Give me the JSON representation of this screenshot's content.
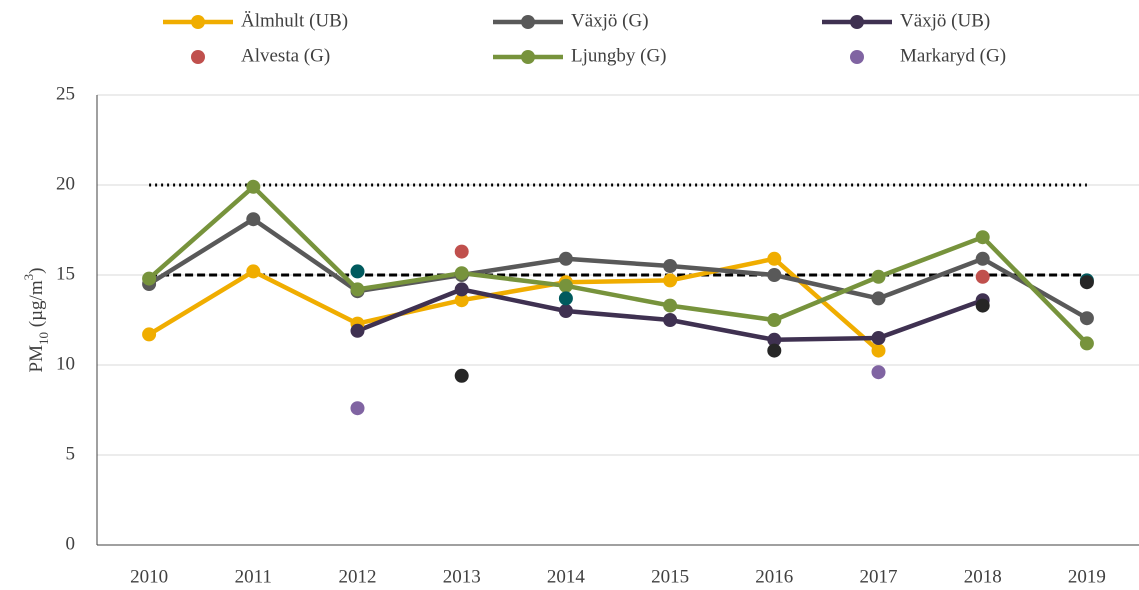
{
  "chart_data": {
    "type": "line",
    "categories": [
      "2010",
      "2011",
      "2012",
      "2013",
      "2014",
      "2015",
      "2016",
      "2017",
      "2018",
      "2019"
    ],
    "ylabel": [
      "PM",
      "10",
      " (µg/m",
      "3",
      ")"
    ],
    "ylabel_scripts": [
      null,
      "sub",
      null,
      "super",
      null
    ],
    "ylim": [
      0,
      25
    ],
    "yticks": [
      0,
      5,
      10,
      15,
      20,
      25
    ],
    "grid": true,
    "legend": "top",
    "reference_lines": [
      {
        "value": 20,
        "style": "dotted"
      },
      {
        "value": 15,
        "style": "dashed"
      }
    ],
    "series": [
      {
        "name": "Älmhult (UB)",
        "color": "#f0ad00",
        "mode": "lines+markers",
        "values": [
          11.7,
          15.2,
          12.3,
          13.6,
          14.6,
          14.7,
          15.9,
          10.8,
          null,
          null
        ]
      },
      {
        "name": "Växjö (G)",
        "color": "#595959",
        "mode": "lines+markers",
        "values": [
          14.5,
          18.1,
          14.1,
          15.0,
          15.9,
          15.5,
          15.0,
          13.7,
          15.9,
          12.6
        ]
      },
      {
        "name": "Växjö (UB)",
        "color": "#3f3151",
        "mode": "lines+markers",
        "values": [
          null,
          null,
          11.9,
          14.2,
          13.0,
          12.5,
          11.4,
          11.5,
          13.6,
          null
        ]
      },
      {
        "name": "Alvesta (G)",
        "color": "#c0504d",
        "mode": "markers",
        "values": [
          null,
          null,
          null,
          16.3,
          null,
          null,
          null,
          null,
          14.9,
          null
        ]
      },
      {
        "name": "Ljungby (G)",
        "color": "#77933c",
        "mode": "lines+markers",
        "values": [
          14.8,
          19.9,
          14.2,
          15.1,
          14.4,
          13.3,
          12.5,
          14.9,
          17.1,
          11.2
        ]
      },
      {
        "name": "Markaryd (G)",
        "color": "#8064a2",
        "mode": "markers",
        "values": [
          null,
          null,
          7.6,
          null,
          null,
          null,
          null,
          9.6,
          null,
          null
        ]
      },
      {
        "color": "#005a5e",
        "mode": "markers",
        "values": [
          null,
          null,
          15.2,
          null,
          13.7,
          null,
          null,
          null,
          null,
          14.7
        ]
      },
      {
        "color": "#262626",
        "mode": "markers",
        "values": [
          null,
          null,
          null,
          9.4,
          null,
          null,
          10.8,
          null,
          13.3,
          14.6
        ]
      }
    ]
  }
}
